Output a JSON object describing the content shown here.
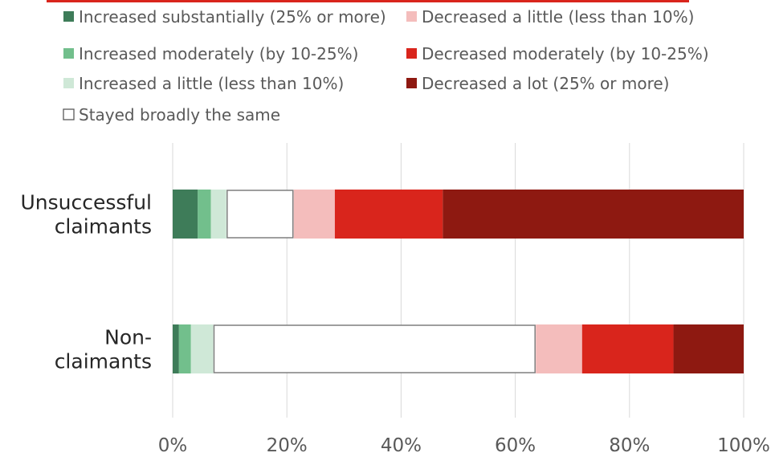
{
  "chart_data": {
    "type": "bar",
    "orientation": "horizontal",
    "stacked": true,
    "title": "",
    "xlabel": "",
    "ylabel": "",
    "xlim": [
      0,
      100
    ],
    "x_ticks": [
      "0%",
      "20%",
      "40%",
      "60%",
      "80%",
      "100%"
    ],
    "grid": true,
    "legend_position": "top",
    "categories": [
      "Unsuccessful claimants",
      "Non-claimants"
    ],
    "category_display": [
      [
        "Unsuccessful",
        "claimants"
      ],
      [
        "Non-",
        "claimants"
      ]
    ],
    "series": [
      {
        "name": "Increased substantially (25% or more)",
        "color": "#3e7c59",
        "values": [
          4.4,
          1.1
        ]
      },
      {
        "name": "Increased moderately (by 10-25%)",
        "color": "#72bf8c",
        "values": [
          2.3,
          2.1
        ]
      },
      {
        "name": "Increased a little (less than 10%)",
        "color": "#cfe8d7",
        "values": [
          2.7,
          3.9
        ]
      },
      {
        "name": "Stayed broadly the same",
        "color": "#ffffff",
        "outline": "#7f7f7f",
        "values": [
          11.8,
          56.5
        ]
      },
      {
        "name": "Decreased a little (less than 10%)",
        "color": "#f4bdbc",
        "values": [
          7.2,
          8.1
        ]
      },
      {
        "name": "Decreased moderately (by 10-25%)",
        "color": "#d9251c",
        "values": [
          18.9,
          16.0
        ]
      },
      {
        "name": "Decreased a lot (25% or more)",
        "color": "#8e1911",
        "values": [
          52.7,
          12.3
        ]
      }
    ]
  },
  "colors": {
    "grid": "#d9d9d9",
    "text": "#595959",
    "category_text": "#262626",
    "title_fragment": "#d9251c"
  }
}
